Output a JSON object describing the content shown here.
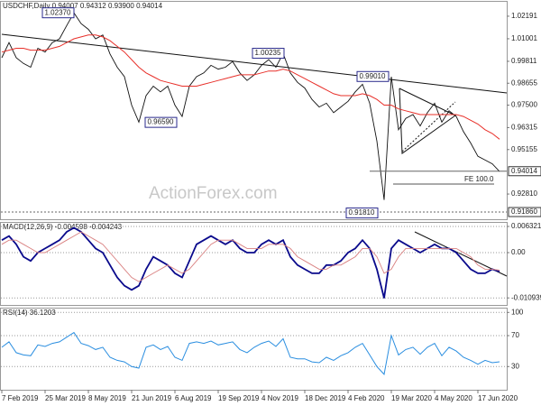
{
  "chart_data": [
    {
      "type": "line",
      "title": "USDCHF,Daily  0.94007 0.94312 0.93900 0.94014",
      "categories": [
        "7 Feb 2019",
        null,
        null,
        null,
        null,
        null,
        "25 Mar 2019",
        null,
        null,
        null,
        null,
        null,
        "8 May 2019",
        null,
        null,
        null,
        null,
        null,
        "21 Jun 2019",
        null,
        null,
        null,
        null,
        null,
        "6 Aug 2019",
        null,
        null,
        null,
        null,
        null,
        "19 Sep 2019",
        null,
        null,
        null,
        null,
        null,
        "4 Nov 2019",
        null,
        null,
        null,
        null,
        null,
        "18 Dec 2019",
        null,
        null,
        null,
        null,
        null,
        "4 Feb 2020",
        null,
        null,
        null,
        null,
        null,
        "19 Mar 2020",
        null,
        null,
        null,
        null,
        null,
        "4 May 2020",
        null,
        null,
        null,
        null,
        null,
        "17 Jun 2020",
        null,
        null,
        null
      ],
      "series": [
        {
          "color": "#111111",
          "values": [
            1.0,
            1.008,
            1.0,
            0.997,
            0.995,
            1.005,
            1.003,
            1.008,
            1.01,
            1.017,
            1.0237,
            1.018,
            1.015,
            1.01,
            1.012,
            1.002,
            0.995,
            0.99,
            0.975,
            0.966,
            0.98,
            0.985,
            0.982,
            0.985,
            0.975,
            0.969,
            0.985,
            0.99,
            0.992,
            0.996,
            0.994,
            0.995,
            0.998,
            0.992,
            0.988,
            0.991,
            0.996,
            0.999,
            0.995,
            1.0023,
            0.992,
            0.987,
            0.984,
            0.978,
            0.974,
            0.976,
            0.971,
            0.974,
            0.977,
            0.982,
            0.986,
            0.976,
            0.956,
            0.925,
            0.99,
            0.962,
            0.968,
            0.97,
            0.964,
            0.971,
            0.976,
            0.966,
            0.972,
            0.969,
            0.961,
            0.955,
            0.948,
            0.946,
            0.944,
            0.94
          ]
        },
        {
          "color": "#e8302a",
          "values": [
            1.003,
            1.004,
            1.005,
            1.005,
            1.004,
            1.004,
            1.004,
            1.005,
            1.006,
            1.008,
            1.01,
            1.011,
            1.012,
            1.012,
            1.011,
            1.009,
            1.006,
            1.003,
            0.999,
            0.995,
            0.992,
            0.99,
            0.988,
            0.987,
            0.986,
            0.985,
            0.985,
            0.985,
            0.986,
            0.987,
            0.988,
            0.989,
            0.99,
            0.991,
            0.991,
            0.991,
            0.992,
            0.993,
            0.993,
            0.994,
            0.993,
            0.991,
            0.989,
            0.987,
            0.985,
            0.983,
            0.981,
            0.98,
            0.98,
            0.98,
            0.981,
            0.98,
            0.978,
            0.975,
            0.975,
            0.973,
            0.972,
            0.971,
            0.97,
            0.97,
            0.97,
            0.97,
            0.97,
            0.97,
            0.969,
            0.967,
            0.965,
            0.962,
            0.96,
            0.957
          ]
        }
      ],
      "ylim": [
        0.9148,
        1.0295
      ],
      "yticks": [
        1.02191,
        1.01001,
        0.99811,
        0.98655,
        {
          "value": 0.975,
          "label": "0.97500"
        },
        0.96315,
        0.95155,
        {
          "value": 0.9281,
          "label": "0.92810"
        }
      ],
      "grid": false,
      "annotations": [
        {
          "value": 1.0237,
          "label": "1.02370"
        },
        {
          "value": 1.00235,
          "label": "1.00235"
        },
        {
          "value": 0.9901,
          "label": "0.99010"
        },
        {
          "value": 0.9659,
          "label": "0.96590"
        },
        {
          "value": 0.9181,
          "label": "0.91810"
        }
      ],
      "markers": [
        {
          "value": 0.94014,
          "label": "0.94014"
        },
        {
          "value": 0.9186,
          "label": "0.91860"
        }
      ],
      "fe_label": "FE 100.0",
      "watermark": "ActionForex.com"
    },
    {
      "type": "line",
      "title": "MACD(12,26,9) -0.004598 -0.004243",
      "series": [
        {
          "color": "#0a0a8c",
          "values": [
            0.003,
            0.004,
            0.002,
            -0.001,
            -0.002,
            0.0,
            0.001,
            0.002,
            0.003,
            0.005,
            0.006,
            0.005,
            0.003,
            0.001,
            0.0,
            -0.003,
            -0.006,
            -0.008,
            -0.009,
            -0.008,
            -0.004,
            -0.001,
            -0.002,
            -0.003,
            -0.005,
            -0.006,
            -0.002,
            0.002,
            0.003,
            0.004,
            0.003,
            0.002,
            0.003,
            0.001,
            0.0,
            0.0,
            0.002,
            0.003,
            0.002,
            0.003,
            -0.001,
            -0.003,
            -0.004,
            -0.005,
            -0.005,
            -0.003,
            -0.003,
            -0.002,
            0.0,
            0.001,
            0.003,
            0.001,
            -0.004,
            -0.011,
            0.001,
            0.003,
            0.002,
            0.001,
            0.0,
            0.001,
            0.002,
            0.001,
            0.001,
            0.0,
            -0.002,
            -0.004,
            -0.005,
            -0.005,
            -0.004,
            -0.004598
          ]
        },
        {
          "color": "#d98080",
          "values": [
            0.002,
            0.003,
            0.003,
            0.002,
            0.001,
            0.0,
            0.0,
            0.001,
            0.002,
            0.003,
            0.004,
            0.005,
            0.004,
            0.003,
            0.002,
            0.0,
            -0.002,
            -0.004,
            -0.006,
            -0.007,
            -0.006,
            -0.005,
            -0.004,
            -0.003,
            -0.004,
            -0.005,
            -0.004,
            -0.002,
            0.0,
            0.002,
            0.003,
            0.003,
            0.003,
            0.002,
            0.001,
            0.001,
            0.001,
            0.002,
            0.002,
            0.002,
            0.001,
            -0.001,
            -0.002,
            -0.003,
            -0.004,
            -0.004,
            -0.003,
            -0.003,
            -0.002,
            -0.001,
            0.001,
            0.001,
            -0.001,
            -0.005,
            -0.004,
            -0.001,
            0.001,
            0.001,
            0.001,
            0.001,
            0.001,
            0.001,
            0.001,
            0.001,
            0.0,
            -0.001,
            -0.003,
            -0.004,
            -0.004,
            -0.004243
          ]
        }
      ],
      "ylim": [
        -0.01264,
        0.00719
      ],
      "yticks": [
        0.006321,
        {
          "value": 0,
          "label": "0.00"
        },
        -0.010939
      ],
      "grid": true
    },
    {
      "type": "line",
      "title": "RSI(14) 36.1203",
      "series": [
        {
          "color": "#2a8ee0",
          "values": [
            55,
            62,
            48,
            45,
            44,
            58,
            56,
            60,
            62,
            68,
            74,
            60,
            57,
            52,
            55,
            42,
            38,
            36,
            30,
            28,
            55,
            58,
            52,
            56,
            42,
            38,
            60,
            62,
            60,
            63,
            58,
            60,
            62,
            52,
            48,
            55,
            60,
            63,
            56,
            66,
            42,
            40,
            40,
            36,
            35,
            42,
            38,
            44,
            48,
            55,
            60,
            45,
            30,
            20,
            70,
            45,
            52,
            55,
            46,
            55,
            60,
            44,
            55,
            50,
            42,
            38,
            33,
            38,
            35,
            36.1203
          ]
        }
      ],
      "ylim": [
        0,
        105
      ],
      "yticks": [
        100,
        70,
        30
      ],
      "grid": true
    }
  ]
}
